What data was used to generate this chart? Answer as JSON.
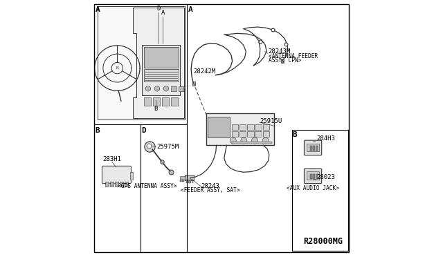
{
  "bg_color": "#ffffff",
  "border_color": "#000000",
  "line_color": "#333333",
  "ref_code": "R28000MG",
  "text_font": "monospace",
  "small_font_size": 6.5,
  "label_font_size": 7.5,
  "section_font_size": 9,
  "part_ids": [
    "28242M",
    "28243M",
    "25915U",
    "283H1",
    "25975M",
    "28243",
    "284H3",
    "28023"
  ],
  "section_labels": [
    "A",
    "B",
    "D"
  ],
  "antenna_feeder_label": [
    "28243M",
    "<ANTENNA FEEDER",
    "ASSY, CPN>"
  ],
  "feeder_sat_label": [
    "28243",
    "<FEEDER ASSY, SAT>"
  ],
  "gps_label": "<GPS ANTENNA ASSY>",
  "aux_label": "<AUX AUDIO JACK>"
}
